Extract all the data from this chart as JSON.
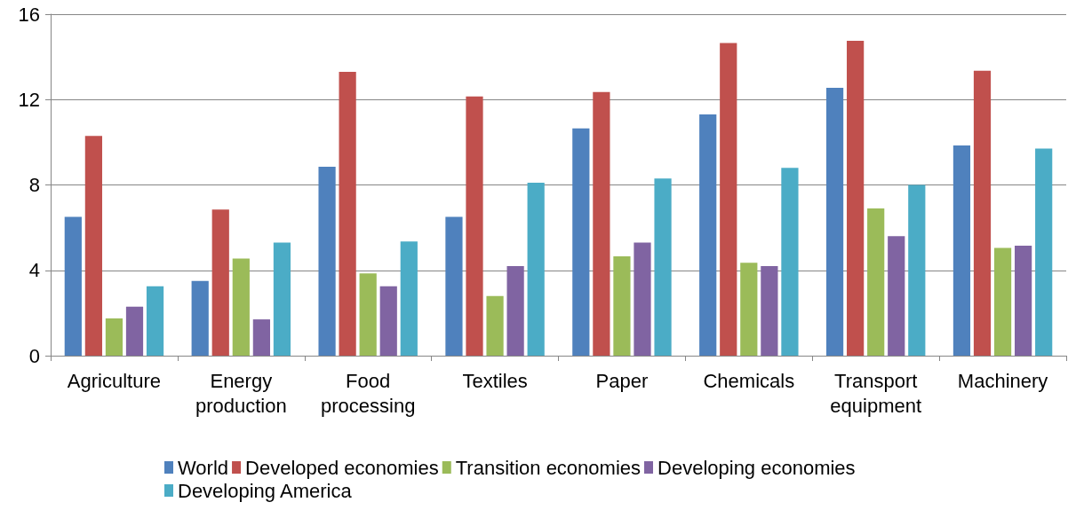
{
  "chart_data": {
    "type": "bar",
    "categories": [
      "Agriculture",
      "Energy\nproduction",
      "Food\nprocessing",
      "Textiles",
      "Paper",
      "Chemicals",
      "Transport\nequipment",
      "Machinery"
    ],
    "series": [
      {
        "name": "World",
        "color": "#4f81bd",
        "values": [
          6.5,
          3.5,
          8.85,
          6.5,
          10.65,
          11.3,
          12.55,
          9.85
        ]
      },
      {
        "name": "Developed economies",
        "color": "#c0504d",
        "values": [
          10.3,
          6.85,
          13.3,
          12.15,
          12.35,
          14.65,
          14.75,
          13.35
        ]
      },
      {
        "name": "Transition economies",
        "color": "#9bbb59",
        "values": [
          1.75,
          4.55,
          3.85,
          2.8,
          4.65,
          4.35,
          6.9,
          5.05
        ]
      },
      {
        "name": "Developing economies",
        "color": "#8064a2",
        "values": [
          2.3,
          1.7,
          3.25,
          4.2,
          5.3,
          4.2,
          5.6,
          5.15
        ]
      },
      {
        "name": "Developing America",
        "color": "#4bacc6",
        "values": [
          3.25,
          5.3,
          5.35,
          8.1,
          8.3,
          8.8,
          8.0,
          9.7
        ]
      }
    ],
    "ylim": [
      0,
      16
    ],
    "yticks": [
      0,
      4,
      8,
      12,
      16
    ],
    "grid": "y",
    "legend": "bottom"
  }
}
